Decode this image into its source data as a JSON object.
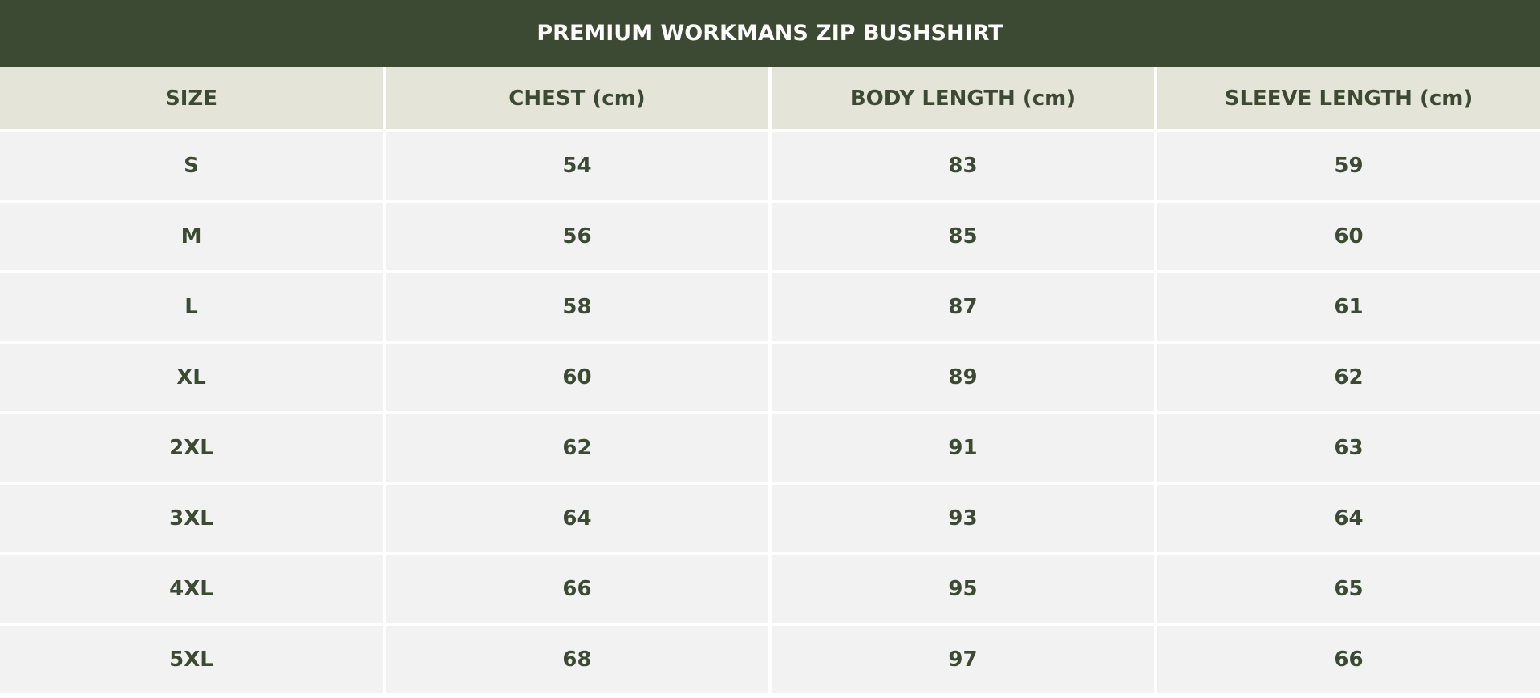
{
  "title": "PREMIUM WORKMANS ZIP BUSHSHIRT",
  "colors": {
    "header_band": "#3d4a33",
    "column_header_bg": "#e4e4d9",
    "row_bg": "#f2f2f2",
    "text": "#3d4a33"
  },
  "columns": [
    "SIZE",
    "CHEST (cm)",
    "BODY LENGTH (cm)",
    "SLEEVE LENGTH (cm)"
  ],
  "rows": [
    [
      "S",
      "54",
      "83",
      "59"
    ],
    [
      "M",
      "56",
      "85",
      "60"
    ],
    [
      "L",
      "58",
      "87",
      "61"
    ],
    [
      "XL",
      "60",
      "89",
      "62"
    ],
    [
      "2XL",
      "62",
      "91",
      "63"
    ],
    [
      "3XL",
      "64",
      "93",
      "64"
    ],
    [
      "4XL",
      "66",
      "95",
      "65"
    ],
    [
      "5XL",
      "68",
      "97",
      "66"
    ]
  ]
}
